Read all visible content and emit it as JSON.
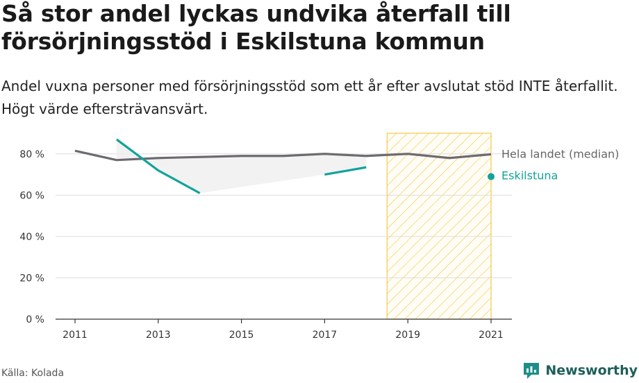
{
  "title": "Så stor andel lyckas undvika återfall till försörjningsstöd i Eskilstuna kommun",
  "subtitle": "Andel vuxna personer med försörjningsstöd som ett år efter avslutat stöd INTE återfallit. Högt värde eftersträvansvärt.",
  "source": "Källa: Kolada",
  "brand": {
    "name": "Newsworthy",
    "icon": "newsworthy-logo-icon"
  },
  "colors": {
    "national": "#6e6a70",
    "eskilstuna": "#11a399",
    "highlight": "#f5c84c",
    "band": "#eeeeee",
    "grid": "#dddddd"
  },
  "chart_data": {
    "type": "line",
    "x_ticks": [
      2011,
      2013,
      2015,
      2017,
      2019,
      2021
    ],
    "y_ticks": [
      0,
      20,
      40,
      60,
      80
    ],
    "y_tick_labels": [
      "0 %",
      "20 %",
      "40 %",
      "60 %",
      "80 %"
    ],
    "xlim": [
      2011,
      2021
    ],
    "ylim": [
      0,
      90
    ],
    "grid": "horizontal",
    "highlight_period": [
      2018.5,
      2021
    ],
    "series": [
      {
        "name": "Hela landet (median)",
        "x": [
          2011,
          2012,
          2013,
          2014,
          2015,
          2016,
          2017,
          2018,
          2019,
          2020,
          2021
        ],
        "values": [
          81.5,
          77,
          78,
          78.5,
          79,
          79,
          80,
          79,
          80,
          78,
          79.8
        ]
      },
      {
        "name": "Eskilstuna",
        "x": [
          2011,
          2012,
          2013,
          2014,
          2015,
          2016,
          2017,
          2018,
          2019,
          2020,
          2021
        ],
        "values": [
          null,
          87,
          72,
          61,
          null,
          null,
          70,
          73.5,
          null,
          null,
          69
        ]
      }
    ]
  }
}
